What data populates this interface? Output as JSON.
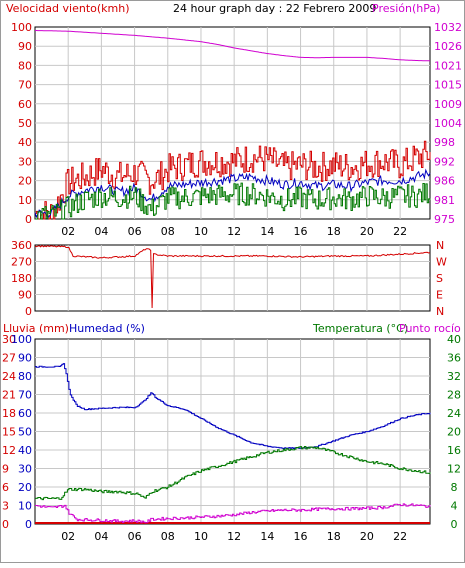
{
  "header": {
    "left_label": "Velocidad viento(kmh)",
    "title": "24 hour graph day : 22 Febrero 2009",
    "right_label": "Presión(hPa)"
  },
  "colors": {
    "red": "#d40000",
    "blue": "#0000c0",
    "green": "#007800",
    "magenta": "#d000d0",
    "grid": "#c8c8c8",
    "frame": "#000000"
  },
  "x_ticks": [
    "02",
    "04",
    "06",
    "08",
    "10",
    "12",
    "14",
    "16",
    "18",
    "20",
    "22"
  ],
  "bottom_header": {
    "rain_label": "Lluvia (mm)",
    "humidity_label": "Humedad (%)",
    "temp_label": "Temperatura (°C)",
    "dew_label": "Punto rocío"
  },
  "chart_data": [
    {
      "id": "wind-pressure",
      "type": "line",
      "x_range_hours": [
        0,
        23.8
      ],
      "y_left": {
        "label": "Velocidad viento(kmh)",
        "range": [
          0,
          100
        ],
        "ticks": [
          0,
          10,
          20,
          30,
          40,
          50,
          60,
          70,
          80,
          90,
          100
        ]
      },
      "y_right": {
        "label": "Presión(hPa)",
        "range": [
          975,
          1030
        ],
        "ticks": [
          975,
          981,
          986,
          992,
          998,
          1004,
          1009,
          1015,
          1021,
          1026,
          1032
        ]
      },
      "series": [
        {
          "name": "Velocidad viento(kmh)",
          "axis": "left",
          "color": "red",
          "style": "gust",
          "base": [
            [
              0,
              3
            ],
            [
              1,
              3
            ],
            [
              2,
              19
            ],
            [
              3,
              22
            ],
            [
              4,
              26
            ],
            [
              5,
              22
            ],
            [
              6,
              24
            ],
            [
              7,
              20
            ],
            [
              7.5,
              22
            ],
            [
              8,
              26
            ],
            [
              10,
              30
            ],
            [
              12,
              30
            ],
            [
              13,
              32
            ],
            [
              14,
              31
            ],
            [
              15,
              27
            ],
            [
              16,
              28
            ],
            [
              17,
              27
            ],
            [
              18,
              28
            ],
            [
              19,
              27
            ],
            [
              20,
              29
            ],
            [
              21,
              30
            ],
            [
              22,
              28
            ],
            [
              23,
              32
            ],
            [
              23.8,
              34
            ]
          ]
        },
        {
          "axis": "left",
          "color": "blue",
          "style": "avg",
          "base": [
            [
              0,
              3
            ],
            [
              1,
              3
            ],
            [
              2,
              12
            ],
            [
              3,
              15
            ],
            [
              4,
              17
            ],
            [
              5,
              14
            ],
            [
              6,
              16
            ],
            [
              7,
              10
            ],
            [
              8,
              17
            ],
            [
              9,
              18
            ],
            [
              10,
              19
            ],
            [
              12,
              21
            ],
            [
              13,
              22
            ],
            [
              14,
              20
            ],
            [
              15,
              18
            ],
            [
              16,
              19
            ],
            [
              17,
              17
            ],
            [
              18,
              18
            ],
            [
              19,
              17
            ],
            [
              20,
              19
            ],
            [
              21,
              20
            ],
            [
              22,
              20
            ],
            [
              23,
              22
            ],
            [
              23.8,
              24
            ]
          ]
        },
        {
          "axis": "left",
          "color": "green",
          "style": "low",
          "base": [
            [
              0,
              2
            ],
            [
              1,
              2
            ],
            [
              2,
              6
            ],
            [
              3,
              10
            ],
            [
              4,
              12
            ],
            [
              5,
              11
            ],
            [
              6,
              12
            ],
            [
              7,
              5
            ],
            [
              8,
              11
            ],
            [
              9,
              11
            ],
            [
              10,
              12
            ],
            [
              12,
              13
            ],
            [
              13,
              13
            ],
            [
              14,
              12
            ],
            [
              15,
              10
            ],
            [
              16,
              11
            ],
            [
              17,
              10
            ],
            [
              18,
              11
            ],
            [
              19,
              10
            ],
            [
              20,
              12
            ],
            [
              21,
              11
            ],
            [
              22,
              12
            ],
            [
              23,
              12
            ],
            [
              23.8,
              14
            ]
          ]
        },
        {
          "name": "Presión(hPa)",
          "axis": "right",
          "color": "magenta",
          "style": "smooth",
          "base": [
            [
              0,
              1029
            ],
            [
              2,
              1028.8
            ],
            [
              4,
              1028.2
            ],
            [
              6,
              1027.6
            ],
            [
              8,
              1026.8
            ],
            [
              10,
              1025.8
            ],
            [
              11,
              1025
            ],
            [
              12,
              1024
            ],
            [
              13,
              1023.2
            ],
            [
              14,
              1022.4
            ],
            [
              15,
              1021.8
            ],
            [
              16,
              1021.3
            ],
            [
              17,
              1021.2
            ],
            [
              18,
              1021.3
            ],
            [
              19,
              1021.3
            ],
            [
              20,
              1021.3
            ],
            [
              21,
              1021
            ],
            [
              22,
              1020.6
            ],
            [
              23,
              1020.4
            ],
            [
              23.8,
              1020.3
            ]
          ]
        }
      ]
    },
    {
      "id": "wind-direction",
      "type": "line",
      "x_range_hours": [
        0,
        23.8
      ],
      "y_left": {
        "range": [
          0,
          360
        ],
        "ticks": [
          0,
          90,
          180,
          270,
          360
        ]
      },
      "y_right_labels": [
        "N",
        "W",
        "S",
        "E",
        "N"
      ],
      "series": [
        {
          "color": "red",
          "style": "dir",
          "base": [
            [
              0,
              355
            ],
            [
              2,
              350
            ],
            [
              2.3,
              300
            ],
            [
              4,
              290
            ],
            [
              6,
              300
            ],
            [
              6.7,
              340
            ],
            [
              7,
              330
            ],
            [
              7.01,
              20
            ],
            [
              7.1,
              20
            ],
            [
              7.11,
              310
            ],
            [
              8,
              300
            ],
            [
              10,
              300
            ],
            [
              12,
              300
            ],
            [
              14,
              300
            ],
            [
              16,
              295
            ],
            [
              18,
              300
            ],
            [
              20,
              300
            ],
            [
              22,
              310
            ],
            [
              23.8,
              320
            ]
          ]
        }
      ]
    },
    {
      "id": "rain-humidity-temp",
      "type": "line",
      "x_range_hours": [
        0,
        23.8
      ],
      "y_left_rain": {
        "label": "Lluvia (mm)",
        "range": [
          0,
          30
        ],
        "ticks": [
          0,
          3,
          6,
          9,
          12,
          15,
          18,
          21,
          24,
          27,
          30
        ]
      },
      "y_left_humidity": {
        "label": "Humedad (%)",
        "range": [
          0,
          100
        ],
        "ticks": [
          0,
          10,
          20,
          30,
          40,
          50,
          60,
          70,
          80,
          90,
          100
        ]
      },
      "y_right": {
        "label": "Temperatura (°C)",
        "range": [
          0,
          40
        ],
        "ticks": [
          0,
          4,
          8,
          12,
          16,
          20,
          24,
          28,
          32,
          36,
          40
        ]
      },
      "series": [
        {
          "name": "Lluvia (mm)",
          "axis": "rain",
          "color": "red",
          "style": "flat",
          "base": [
            [
              0,
              0
            ],
            [
              23.8,
              0
            ]
          ]
        },
        {
          "name": "Humedad (%)",
          "axis": "humidity",
          "color": "blue",
          "style": "step",
          "base": [
            [
              0,
              85
            ],
            [
              1.5,
              85
            ],
            [
              1.7,
              87
            ],
            [
              1.9,
              80
            ],
            [
              2.1,
              70
            ],
            [
              2.5,
              64
            ],
            [
              3,
              62
            ],
            [
              5,
              63
            ],
            [
              6,
              63
            ],
            [
              6.5,
              66
            ],
            [
              7,
              71
            ],
            [
              7.3,
              68
            ],
            [
              8,
              64
            ],
            [
              9,
              62
            ],
            [
              10,
              57
            ],
            [
              11,
              52
            ],
            [
              12,
              48
            ],
            [
              13,
              44
            ],
            [
              14,
              42
            ],
            [
              15,
              41
            ],
            [
              16,
              41
            ],
            [
              17,
              42
            ],
            [
              18,
              45
            ],
            [
              19,
              48
            ],
            [
              20,
              50
            ],
            [
              21,
              53
            ],
            [
              22,
              57
            ],
            [
              23,
              59
            ],
            [
              23.8,
              60
            ]
          ]
        },
        {
          "name": "Temperatura (°C)",
          "axis": "right",
          "color": "green",
          "style": "step",
          "base": [
            [
              0,
              5.5
            ],
            [
              1.5,
              5.5
            ],
            [
              2,
              7.5
            ],
            [
              3,
              7.5
            ],
            [
              4,
              7
            ],
            [
              5,
              7
            ],
            [
              6.2,
              6.5
            ],
            [
              6.6,
              5.5
            ],
            [
              7,
              7
            ],
            [
              8,
              8
            ],
            [
              9,
              10
            ],
            [
              10,
              11.5
            ],
            [
              11,
              12.5
            ],
            [
              12,
              13.5
            ],
            [
              13,
              14.5
            ],
            [
              14,
              15.5
            ],
            [
              15,
              16
            ],
            [
              16,
              16.5
            ],
            [
              17,
              16.5
            ],
            [
              18,
              15.5
            ],
            [
              19,
              14.5
            ],
            [
              20,
              13.5
            ],
            [
              21,
              13
            ],
            [
              22,
              12
            ],
            [
              23,
              11.5
            ],
            [
              23.8,
              11
            ]
          ]
        },
        {
          "name": "Punto rocío",
          "axis": "right",
          "color": "magenta",
          "style": "step",
          "base": [
            [
              0,
              4
            ],
            [
              1,
              3.5
            ],
            [
              1.8,
              4
            ],
            [
              2,
              2.5
            ],
            [
              2.5,
              1
            ],
            [
              4,
              0.8
            ],
            [
              5,
              0.6
            ],
            [
              6,
              0.7
            ],
            [
              6.7,
              0.4
            ],
            [
              7,
              1
            ],
            [
              8,
              1.2
            ],
            [
              9,
              1.3
            ],
            [
              10,
              1.5
            ],
            [
              11,
              1.7
            ],
            [
              12,
              2
            ],
            [
              13,
              2.5
            ],
            [
              14,
              2.8
            ],
            [
              15,
              3
            ],
            [
              16,
              3
            ],
            [
              17,
              3.2
            ],
            [
              18,
              3.3
            ],
            [
              19,
              3.3
            ],
            [
              20,
              3.4
            ],
            [
              21,
              3.6
            ],
            [
              22,
              4.2
            ],
            [
              23,
              4
            ],
            [
              23.8,
              3.8
            ]
          ]
        }
      ]
    }
  ]
}
